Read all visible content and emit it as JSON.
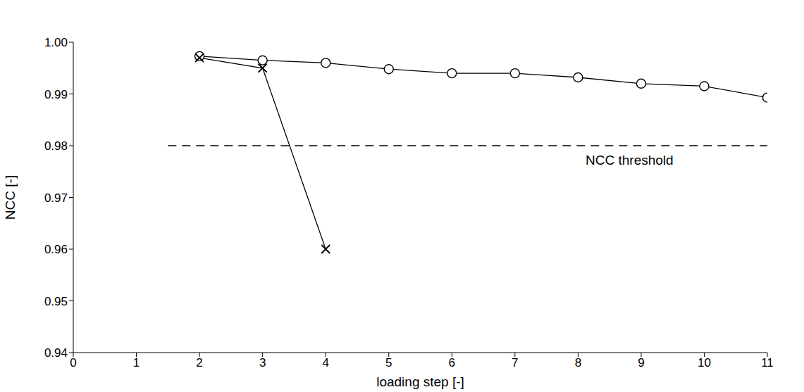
{
  "chart_data": {
    "type": "line",
    "x_label": "loading step [-]",
    "y_label": "NCC [-]",
    "x": [
      2,
      3,
      4,
      5,
      6,
      7,
      8,
      9,
      10,
      11
    ],
    "series": [
      {
        "color": "#000000",
        "marker": "circle",
        "line_style": "solid",
        "values": [
          0.9973,
          0.9965,
          0.996,
          0.9948,
          0.994,
          0.994,
          0.9932,
          0.992,
          0.9915,
          0.9893
        ]
      },
      {
        "color": "#000000",
        "marker": "x",
        "line_style": "solid",
        "values": [
          0.997,
          0.995,
          0.96,
          null,
          null,
          null,
          null,
          null,
          null,
          null
        ]
      }
    ],
    "xlim": [
      0,
      11
    ],
    "xticks": [
      0,
      1,
      2,
      3,
      4,
      5,
      6,
      7,
      8,
      9,
      10,
      11
    ],
    "ylim": [
      0.94,
      1.0
    ],
    "yticks": [
      0.94,
      0.95,
      0.96,
      0.97,
      0.98,
      0.99,
      {
        "value": 1.0,
        "label": "1.00"
      }
    ],
    "threshold": {
      "value": 0.98,
      "label": "NCC threshold",
      "x": [
        1.5,
        11
      ],
      "line_style": "dashed"
    },
    "grid": false
  }
}
